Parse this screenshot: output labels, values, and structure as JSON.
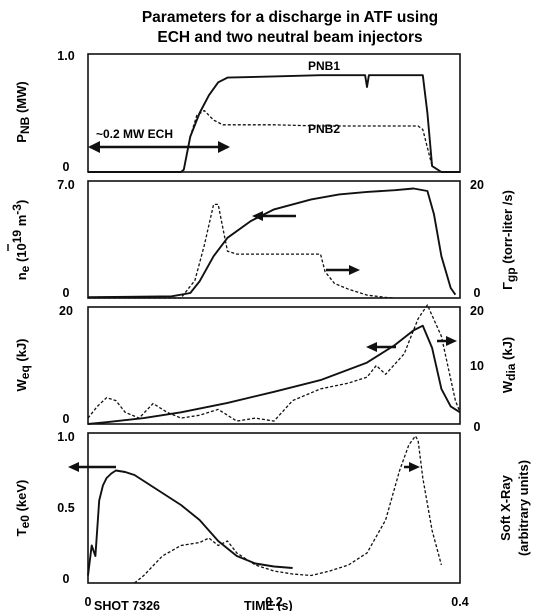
{
  "title_line1": "Parameters for a discharge in ATF using",
  "title_line2": "ECH and two neutral beam injectors",
  "xlim": [
    0,
    0.4
  ],
  "x_ticks": [
    "0",
    "0.2",
    "0.4"
  ],
  "xlabel": "TIME (s)",
  "footer_left": "SHOT 7326",
  "line_color": "#111111",
  "panels": [
    {
      "id": "pnb",
      "left_label": "P",
      "left_label_sub": "NB",
      "left_label_unit": " (MW)",
      "left_ticks": [
        "0",
        "1.0"
      ],
      "ylim": [
        0,
        1.0
      ],
      "annotations": {
        "pnb1": "PNB1",
        "pnb2": "PNB2",
        "ech": "~0.2 MW ECH"
      }
    },
    {
      "id": "density",
      "left_label": "n",
      "left_label_sub": "e",
      "left_label_unit": " (10",
      "left_label_sup": "19",
      "left_label_unit2": " m",
      "left_label_sup2": "-3",
      "left_label_close": ")",
      "left_ticks": [
        "0",
        "7.0"
      ],
      "right_label": "Γ",
      "right_label_sub": "gp",
      "right_label_unit": " (torr-liter /s)",
      "right_ticks": [
        "0",
        "20"
      ],
      "ylim_left": [
        0,
        7.0
      ],
      "ylim_right": [
        0,
        20
      ]
    },
    {
      "id": "energy",
      "left_label": "W",
      "left_label_sub": "eq",
      "left_label_unit": " (kJ)",
      "left_ticks": [
        "0",
        "20"
      ],
      "right_label": "W",
      "right_label_sub": "dia",
      "right_label_unit": " (kJ)",
      "right_ticks": [
        "0",
        "10",
        "20"
      ],
      "ylim_left": [
        0,
        20
      ],
      "ylim_right": [
        0,
        20
      ]
    },
    {
      "id": "te",
      "left_label": "T",
      "left_label_sub": "e0",
      "left_label_unit": " (keV)",
      "left_ticks": [
        "0",
        "0.5",
        "1.0"
      ],
      "right_label_line1": "Soft X-Ray",
      "right_label_line2": "(arbitrary units)",
      "ylim": [
        0,
        1.0
      ]
    }
  ],
  "chart_data": [
    {
      "type": "line",
      "title": "Parameters for a discharge in ATF using ECH and two neutral beam injectors",
      "xlabel": "TIME (s)",
      "ylabel": "PNB (MW)",
      "xlim": [
        0,
        0.4
      ],
      "ylim": [
        0,
        1.0
      ],
      "series": [
        {
          "name": "PNB1",
          "style": "solid",
          "x": [
            0,
            0.1,
            0.103,
            0.11,
            0.12,
            0.13,
            0.14,
            0.15,
            0.2,
            0.25,
            0.29,
            0.298,
            0.3,
            0.302,
            0.31,
            0.34,
            0.355,
            0.36,
            0.365,
            0.37,
            0.38,
            0.4
          ],
          "y": [
            0,
            0,
            0.02,
            0.3,
            0.5,
            0.65,
            0.76,
            0.8,
            0.81,
            0.82,
            0.82,
            0.82,
            0.72,
            0.82,
            0.82,
            0.82,
            0.82,
            0.82,
            0.5,
            0.05,
            0,
            0
          ]
        },
        {
          "name": "PNB2",
          "style": "dashed",
          "x": [
            0,
            0.1,
            0.103,
            0.11,
            0.117,
            0.125,
            0.135,
            0.145,
            0.2,
            0.25,
            0.3,
            0.34,
            0.35,
            0.355,
            0.36,
            0.37,
            0.38,
            0.4
          ],
          "y": [
            0,
            0,
            0.02,
            0.3,
            0.48,
            0.52,
            0.44,
            0.4,
            0.4,
            0.39,
            0.39,
            0.39,
            0.39,
            0.39,
            0.36,
            0.05,
            0,
            0
          ]
        }
      ]
    },
    {
      "type": "line",
      "ylabel": "ne (10^19 m^-3)",
      "y2label": "Γgp (torr-liter /s)",
      "xlim": [
        0,
        0.4
      ],
      "ylim": [
        0,
        7.0
      ],
      "y2lim": [
        0,
        20
      ],
      "series": [
        {
          "axis": "left",
          "style": "solid",
          "x": [
            0,
            0.09,
            0.11,
            0.12,
            0.135,
            0.15,
            0.175,
            0.2,
            0.24,
            0.27,
            0.3,
            0.33,
            0.35,
            0.365,
            0.372,
            0.38,
            0.39,
            0.395
          ],
          "y": [
            0.05,
            0.1,
            0.3,
            1.0,
            2.5,
            3.6,
            4.6,
            5.3,
            5.9,
            6.2,
            6.35,
            6.45,
            6.55,
            6.4,
            5.0,
            2.5,
            0.6,
            0.2
          ]
        },
        {
          "axis": "right",
          "style": "dashed",
          "x": [
            0,
            0.1,
            0.115,
            0.125,
            0.135,
            0.14,
            0.145,
            0.15,
            0.16,
            0.2,
            0.25,
            0.255,
            0.265,
            0.28,
            0.3,
            0.32,
            0.33
          ],
          "y": [
            0,
            0,
            3,
            9,
            16,
            16,
            12,
            8,
            7.5,
            7.5,
            7.5,
            4.5,
            2.5,
            1.5,
            0.5,
            0.1,
            0
          ]
        }
      ]
    },
    {
      "type": "line",
      "ylabel": "Weq (kJ)",
      "y2label": "Wdia (kJ)",
      "xlim": [
        0,
        0.4
      ],
      "ylim": [
        0,
        20
      ],
      "y2lim": [
        0,
        20
      ],
      "series": [
        {
          "axis": "left",
          "style": "solid",
          "x": [
            0,
            0.02,
            0.06,
            0.1,
            0.15,
            0.2,
            0.25,
            0.3,
            0.33,
            0.35,
            0.36,
            0.37,
            0.38,
            0.39,
            0.4
          ],
          "y": [
            0,
            0.3,
            1.0,
            2.0,
            3.6,
            5.5,
            7.5,
            10.5,
            13.5,
            16.0,
            16.8,
            13.0,
            6.0,
            3.0,
            2.0
          ]
        },
        {
          "axis": "right",
          "style": "dashed",
          "x": [
            0,
            0.01,
            0.02,
            0.03,
            0.04,
            0.055,
            0.07,
            0.085,
            0.1,
            0.12,
            0.14,
            0.16,
            0.18,
            0.2,
            0.22,
            0.25,
            0.28,
            0.3,
            0.31,
            0.32,
            0.34,
            0.355,
            0.365,
            0.38,
            0.395,
            0.4
          ],
          "y": [
            1.0,
            3.0,
            4.5,
            4.0,
            2.0,
            1.0,
            3.5,
            2.0,
            1.0,
            1.5,
            2.5,
            0.5,
            1.0,
            0.5,
            4.0,
            6.0,
            7.0,
            8.0,
            10.0,
            8.5,
            12.0,
            18.0,
            21.0,
            15.0,
            4.0,
            2.0
          ]
        }
      ]
    },
    {
      "type": "line",
      "ylabel": "Te0 (keV)",
      "y2label": "Soft X-Ray (arbitrary units)",
      "xlim": [
        0,
        0.4
      ],
      "ylim": [
        0,
        1.0
      ],
      "series": [
        {
          "axis": "left",
          "style": "solid",
          "x": [
            0,
            0.004,
            0.008,
            0.012,
            0.016,
            0.02,
            0.025,
            0.03,
            0.04,
            0.05,
            0.06,
            0.08,
            0.1,
            0.12,
            0.14,
            0.16,
            0.18,
            0.2,
            0.22
          ],
          "y": [
            0.05,
            0.25,
            0.18,
            0.55,
            0.65,
            0.7,
            0.73,
            0.75,
            0.74,
            0.72,
            0.68,
            0.6,
            0.52,
            0.42,
            0.28,
            0.18,
            0.13,
            0.11,
            0.1
          ]
        },
        {
          "axis": "right",
          "style": "dashed",
          "x": [
            0.05,
            0.06,
            0.08,
            0.1,
            0.12,
            0.13,
            0.14,
            0.15,
            0.16,
            0.18,
            0.2,
            0.22,
            0.24,
            0.26,
            0.28,
            0.3,
            0.32,
            0.335,
            0.345,
            0.352,
            0.355,
            0.36,
            0.37,
            0.38
          ],
          "y": [
            0,
            0.05,
            0.18,
            0.25,
            0.27,
            0.3,
            0.25,
            0.28,
            0.2,
            0.12,
            0.08,
            0.06,
            0.05,
            0.08,
            0.12,
            0.2,
            0.42,
            0.75,
            0.92,
            0.98,
            0.95,
            0.7,
            0.35,
            0.12
          ]
        }
      ]
    }
  ]
}
